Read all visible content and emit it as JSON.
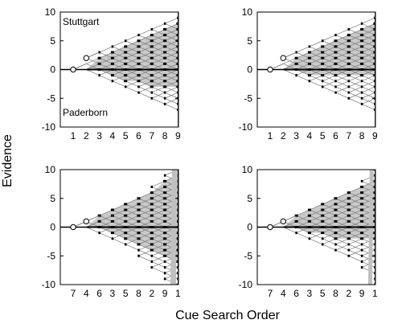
{
  "figure": {
    "ylabel": "Evidence",
    "xlabel": "Cue Search Order"
  },
  "chart_data": [
    {
      "type": "line",
      "panel": "top-left",
      "annotations": [
        "Stuttgart",
        "Paderborn"
      ],
      "xticks": [
        "1",
        "2",
        "3",
        "4",
        "5",
        "6",
        "7",
        "8",
        "9"
      ],
      "yticks": [
        "-10",
        "-5",
        "0",
        "5",
        "10"
      ],
      "ylim": [
        -10,
        10
      ],
      "open_markers": [
        {
          "x": 1,
          "y": 0
        },
        {
          "x": 2,
          "y": 2
        }
      ],
      "envelope_upper": [
        0,
        2,
        3,
        4,
        5,
        6,
        7,
        8,
        9
      ],
      "envelope_lower": [
        0,
        0,
        -1,
        -2,
        -3,
        -4,
        -5,
        -6,
        -7
      ],
      "shaded_upper": [
        0,
        1,
        2,
        3,
        4,
        5,
        6,
        7,
        8
      ],
      "shaded_lower": [
        0,
        0,
        0,
        -1,
        -2,
        -2,
        -3,
        -3,
        -3
      ],
      "histogram_positive": [
        1,
        3,
        5,
        7,
        8,
        8,
        7,
        5,
        3
      ],
      "histogram_negative": [
        9,
        7,
        5,
        3,
        2,
        1
      ],
      "grid": false
    },
    {
      "type": "line",
      "panel": "top-right",
      "annotations": [],
      "xticks": [
        "1",
        "2",
        "3",
        "4",
        "5",
        "6",
        "7",
        "8",
        "9"
      ],
      "yticks": [
        "-10",
        "-5",
        "0",
        "5",
        "10"
      ],
      "ylim": [
        -10,
        10
      ],
      "open_markers": [
        {
          "x": 1,
          "y": 0
        },
        {
          "x": 2,
          "y": 2
        }
      ],
      "envelope_upper": [
        0,
        2,
        3,
        4,
        5,
        6,
        7,
        8,
        9
      ],
      "envelope_lower": [
        0,
        0,
        -1,
        -2,
        -3,
        -4,
        -5,
        -6,
        -7
      ],
      "shaded_upper": [
        0,
        1,
        2,
        3,
        4,
        5,
        6,
        7,
        8
      ],
      "shaded_lower": [
        0,
        0,
        0,
        -1,
        -1,
        -1,
        -1,
        -1,
        -1
      ],
      "histogram_positive": [
        2,
        4,
        6,
        7,
        8,
        9,
        7,
        5,
        3
      ],
      "histogram_negative": [
        3,
        2,
        1
      ],
      "grid": false
    },
    {
      "type": "line",
      "panel": "bottom-left",
      "annotations": [],
      "xticks": [
        "7",
        "4",
        "6",
        "3",
        "5",
        "8",
        "2",
        "9",
        "1"
      ],
      "yticks": [
        "-10",
        "-5",
        "0",
        "5",
        "10"
      ],
      "ylim": [
        -10,
        10
      ],
      "open_markers": [
        {
          "x": 1,
          "y": 0
        },
        {
          "x": 2,
          "y": 1
        }
      ],
      "envelope_upper": [
        0,
        1,
        2,
        3,
        4,
        5,
        7,
        9,
        10
      ],
      "envelope_lower": [
        0,
        0,
        -1,
        -2,
        -3,
        -5,
        -7,
        -9,
        -10
      ],
      "shaded_upper": [
        0,
        1,
        2,
        3,
        4,
        5,
        6,
        8,
        9
      ],
      "shaded_lower": [
        0,
        0,
        0,
        -1,
        -2,
        -3,
        -4,
        -5,
        -6
      ],
      "histogram_positive": [
        1,
        3,
        4,
        5,
        6,
        7,
        6,
        5,
        4,
        2
      ],
      "histogram_negative": [
        8,
        7,
        6,
        5,
        4,
        3,
        2
      ],
      "grid": false
    },
    {
      "type": "line",
      "panel": "bottom-right",
      "annotations": [],
      "xticks": [
        "7",
        "4",
        "6",
        "3",
        "5",
        "8",
        "2",
        "9",
        "1"
      ],
      "yticks": [
        "-10",
        "-5",
        "0",
        "5",
        "10"
      ],
      "ylim": [
        -10,
        10
      ],
      "open_markers": [
        {
          "x": 1,
          "y": 0
        },
        {
          "x": 2,
          "y": 1
        }
      ],
      "envelope_upper": [
        0,
        1,
        2,
        3,
        4,
        5,
        6,
        8,
        10
      ],
      "envelope_lower": [
        0,
        0,
        -1,
        -2,
        -3,
        -4,
        -5,
        -7,
        -10
      ],
      "shaded_upper": [
        0,
        1,
        2,
        3,
        4,
        5,
        6,
        7,
        8
      ],
      "shaded_lower": [
        0,
        0,
        0,
        -1,
        -1,
        -2,
        -2,
        -2,
        -2
      ],
      "histogram_positive": [
        2,
        4,
        6,
        7,
        8,
        8,
        6,
        4,
        2
      ],
      "histogram_negative": [
        3,
        2,
        1
      ],
      "grid": false
    }
  ]
}
